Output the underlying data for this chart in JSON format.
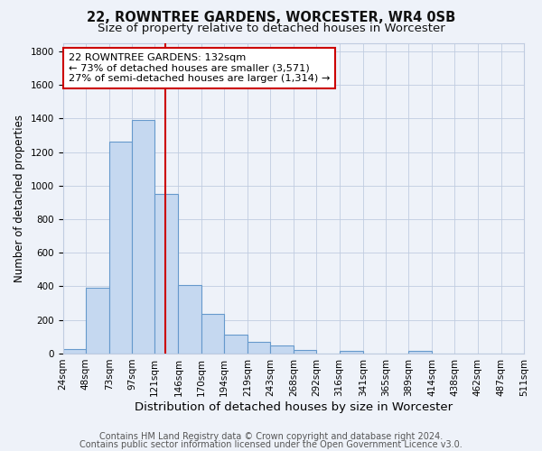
{
  "title": "22, ROWNTREE GARDENS, WORCESTER, WR4 0SB",
  "subtitle": "Size of property relative to detached houses in Worcester",
  "xlabel": "Distribution of detached houses by size in Worcester",
  "ylabel": "Number of detached properties",
  "bar_color": "#c5d8f0",
  "bar_edge_color": "#6699cc",
  "background_color": "#eef2f9",
  "grid_color": "#c0cce0",
  "vline_x": 132,
  "vline_color": "#cc0000",
  "annotation_text": "22 ROWNTREE GARDENS: 132sqm\n← 73% of detached houses are smaller (3,571)\n27% of semi-detached houses are larger (1,314) →",
  "annotation_box_facecolor": "#ffffff",
  "annotation_box_edgecolor": "#cc0000",
  "bins": [
    24,
    48,
    73,
    97,
    121,
    146,
    170,
    194,
    219,
    243,
    268,
    292,
    316,
    341,
    365,
    389,
    414,
    438,
    462,
    487,
    511
  ],
  "bin_labels": [
    "24sqm",
    "48sqm",
    "73sqm",
    "97sqm",
    "121sqm",
    "146sqm",
    "170sqm",
    "194sqm",
    "219sqm",
    "243sqm",
    "268sqm",
    "292sqm",
    "316sqm",
    "341sqm",
    "365sqm",
    "389sqm",
    "414sqm",
    "438sqm",
    "462sqm",
    "487sqm",
    "511sqm"
  ],
  "values": [
    25,
    390,
    1260,
    1390,
    950,
    410,
    235,
    115,
    70,
    50,
    20,
    0,
    15,
    0,
    0,
    15,
    0,
    0,
    0,
    0
  ],
  "ylim": [
    0,
    1850
  ],
  "yticks": [
    0,
    200,
    400,
    600,
    800,
    1000,
    1200,
    1400,
    1600,
    1800
  ],
  "footer_line1": "Contains HM Land Registry data © Crown copyright and database right 2024.",
  "footer_line2": "Contains public sector information licensed under the Open Government Licence v3.0.",
  "title_fontsize": 10.5,
  "subtitle_fontsize": 9.5,
  "xlabel_fontsize": 9.5,
  "ylabel_fontsize": 8.5,
  "tick_fontsize": 7.5,
  "annot_fontsize": 8.2,
  "footer_fontsize": 7.0
}
